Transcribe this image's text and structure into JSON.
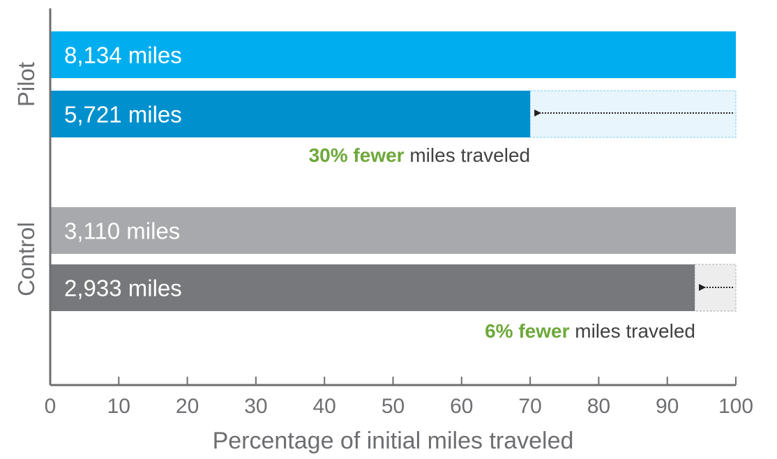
{
  "chart_data": {
    "type": "bar",
    "orientation": "horizontal",
    "title": "",
    "xlabel": "Percentage of initial miles traveled",
    "ylabel": "",
    "xlim": [
      0,
      100
    ],
    "xticks": [
      "0",
      "10",
      "20",
      "30",
      "40",
      "50",
      "60",
      "70",
      "80",
      "90",
      "100"
    ],
    "grid": false,
    "groups": [
      {
        "name": "Pilot",
        "bars": [
          {
            "value": 100,
            "label": "8,134 miles",
            "color": "#00AEEF"
          },
          {
            "value": 70,
            "label": "5,721 miles",
            "color": "#0090CD"
          }
        ],
        "reduction": {
          "from": 100,
          "to": 70,
          "highlight": "30% fewer",
          "text": " miles traveled"
        }
      },
      {
        "name": "Control",
        "bars": [
          {
            "value": 100,
            "label": "3,110 miles",
            "color": "#A7A9AC"
          },
          {
            "value": 94,
            "label": "2,933 miles",
            "color": "#77787B"
          }
        ],
        "reduction": {
          "from": 100,
          "to": 94,
          "highlight": "6% fewer",
          "text": " miles traveled"
        }
      }
    ],
    "colors": {
      "axis": "#6D6E71",
      "tick_label": "#6D6E71",
      "group_label": "#6D6E71",
      "highlight": "#6DA83A",
      "annotation_text": "#414042",
      "bar_label": "#FFFFFF",
      "pilot_gap_fill": "#E8F5FC",
      "pilot_gap_border": "#8FD3F2",
      "control_gap_fill": "#EDEDEE",
      "control_gap_border": "#BCBEC0",
      "arrow": "#231F20"
    }
  }
}
